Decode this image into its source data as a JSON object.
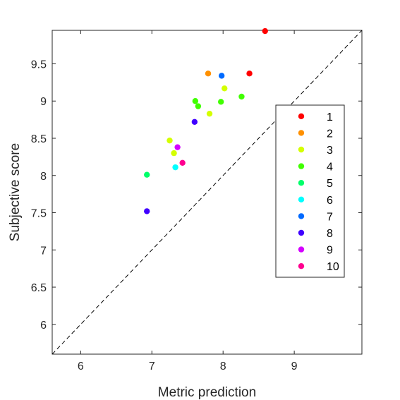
{
  "chart_data": {
    "type": "scatter",
    "title": "",
    "xlabel": "Metric prediction",
    "ylabel": "Subjective score",
    "xlim": [
      5.6,
      9.95
    ],
    "ylim": [
      5.6,
      9.95
    ],
    "x_ticks": [
      "6",
      "7",
      "8",
      "9"
    ],
    "x_tick_values": [
      6,
      7,
      8,
      9
    ],
    "y_ticks": [
      "6",
      "6.5",
      "7",
      "7.5",
      "8",
      "8.5",
      "9",
      "9.5"
    ],
    "y_tick_values": [
      6,
      6.5,
      7,
      7.5,
      8,
      8.5,
      9,
      9.5
    ],
    "grid": false,
    "legend_position": "right",
    "reference_line": {
      "style": "dashed",
      "from": [
        5.6,
        5.6
      ],
      "to": [
        9.95,
        9.95
      ]
    },
    "series": [
      {
        "name": "1",
        "color": "#ff0000",
        "points": [
          [
            8.59,
            9.94
          ],
          [
            8.37,
            9.37
          ]
        ]
      },
      {
        "name": "2",
        "color": "#ff9000",
        "points": [
          [
            7.79,
            9.37
          ]
        ]
      },
      {
        "name": "3",
        "color": "#d4ff00",
        "points": [
          [
            8.02,
            9.17
          ],
          [
            7.81,
            8.83
          ],
          [
            7.25,
            8.47
          ],
          [
            7.31,
            8.3
          ]
        ]
      },
      {
        "name": "4",
        "color": "#40ff00",
        "points": [
          [
            8.26,
            9.06
          ],
          [
            7.97,
            8.99
          ],
          [
            7.61,
            9.0
          ],
          [
            7.65,
            8.93
          ]
        ]
      },
      {
        "name": "5",
        "color": "#00ff6a",
        "points": [
          [
            6.93,
            8.01
          ]
        ]
      },
      {
        "name": "6",
        "color": "#00ffff",
        "points": [
          [
            7.33,
            8.11
          ]
        ]
      },
      {
        "name": "7",
        "color": "#006aff",
        "points": [
          [
            7.98,
            9.34
          ]
        ]
      },
      {
        "name": "8",
        "color": "#4000ff",
        "points": [
          [
            7.6,
            8.72
          ],
          [
            6.93,
            7.52
          ]
        ]
      },
      {
        "name": "9",
        "color": "#d400ff",
        "points": [
          [
            7.36,
            8.38
          ]
        ]
      },
      {
        "name": "10",
        "color": "#ff0090",
        "points": [
          [
            7.43,
            8.17
          ]
        ]
      }
    ]
  }
}
